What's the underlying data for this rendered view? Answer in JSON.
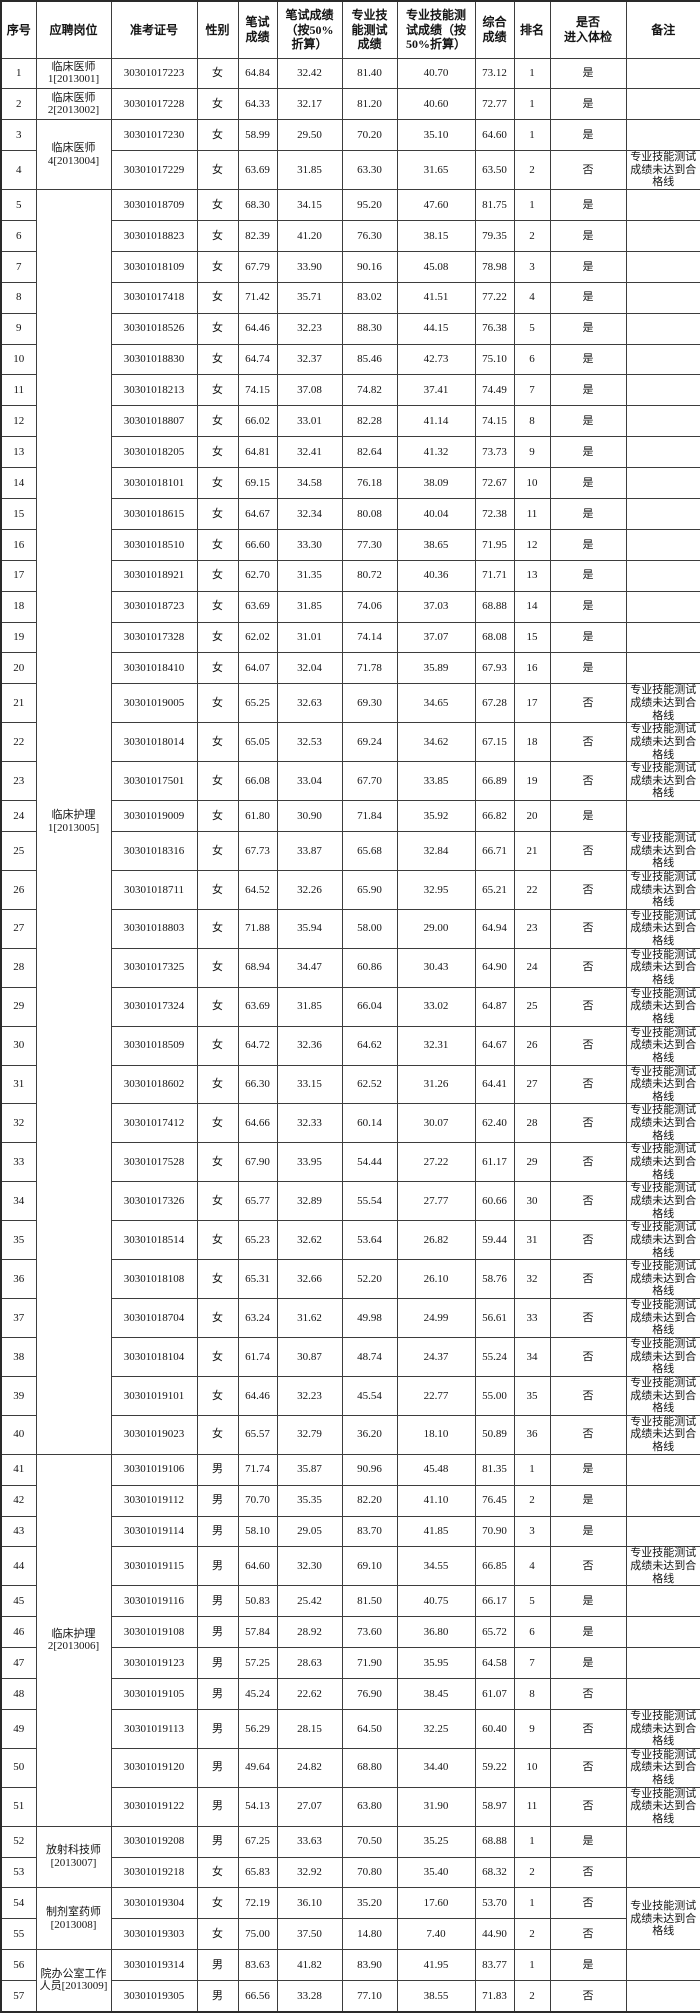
{
  "table": {
    "columns": [
      {
        "key": "no",
        "label": "序号"
      },
      {
        "key": "position",
        "label": "应聘岗位"
      },
      {
        "key": "ticket",
        "label": "准考证号"
      },
      {
        "key": "gender",
        "label": "性别"
      },
      {
        "key": "written",
        "label": "笔试\n成绩"
      },
      {
        "key": "written50",
        "label": "笔试成绩\n（按50%\n折算）"
      },
      {
        "key": "skill",
        "label": "专业技\n能测试\n成绩"
      },
      {
        "key": "skill50",
        "label": "专业技能测\n试成绩（按\n50%折算）"
      },
      {
        "key": "composite",
        "label": "综合\n成绩"
      },
      {
        "key": "rank",
        "label": "排名"
      },
      {
        "key": "physical",
        "label": "是否\n进入体检"
      },
      {
        "key": "remark",
        "label": "备注"
      }
    ],
    "position_groups": [
      {
        "row_start": 1,
        "row_span": 1,
        "label": "临床医师1[2013001]"
      },
      {
        "row_start": 2,
        "row_span": 1,
        "label": "临床医师2[2013002]"
      },
      {
        "row_start": 3,
        "row_span": 2,
        "label": "临床医师4[2013004]"
      },
      {
        "row_start": 5,
        "row_span": 36,
        "label": "临床护理1[2013005]"
      },
      {
        "row_start": 41,
        "row_span": 11,
        "label": "临床护理2[2013006]"
      },
      {
        "row_start": 52,
        "row_span": 2,
        "label": "放射科技师[2013007]"
      },
      {
        "row_start": 54,
        "row_span": 2,
        "label": "制剂室药师[2013008]"
      },
      {
        "row_start": 56,
        "row_span": 2,
        "label": "院办公室工作人员[2013009]"
      }
    ],
    "remark_groups": [
      {
        "row_start": 54,
        "row_span": 2,
        "text": "专业技能测试成绩未达到合格线"
      }
    ],
    "rows": [
      [
        "1",
        "30301017223",
        "女",
        "64.84",
        "32.42",
        "81.40",
        "40.70",
        "73.12",
        "1",
        "是",
        ""
      ],
      [
        "2",
        "30301017228",
        "女",
        "64.33",
        "32.17",
        "81.20",
        "40.60",
        "72.77",
        "1",
        "是",
        ""
      ],
      [
        "3",
        "30301017230",
        "女",
        "58.99",
        "29.50",
        "70.20",
        "35.10",
        "64.60",
        "1",
        "是",
        ""
      ],
      [
        "4",
        "30301017229",
        "女",
        "63.69",
        "31.85",
        "63.30",
        "31.65",
        "63.50",
        "2",
        "否",
        "专业技能测试成绩未达到合格线"
      ],
      [
        "5",
        "30301018709",
        "女",
        "68.30",
        "34.15",
        "95.20",
        "47.60",
        "81.75",
        "1",
        "是",
        ""
      ],
      [
        "6",
        "30301018823",
        "女",
        "82.39",
        "41.20",
        "76.30",
        "38.15",
        "79.35",
        "2",
        "是",
        ""
      ],
      [
        "7",
        "30301018109",
        "女",
        "67.79",
        "33.90",
        "90.16",
        "45.08",
        "78.98",
        "3",
        "是",
        ""
      ],
      [
        "8",
        "30301017418",
        "女",
        "71.42",
        "35.71",
        "83.02",
        "41.51",
        "77.22",
        "4",
        "是",
        ""
      ],
      [
        "9",
        "30301018526",
        "女",
        "64.46",
        "32.23",
        "88.30",
        "44.15",
        "76.38",
        "5",
        "是",
        ""
      ],
      [
        "10",
        "30301018830",
        "女",
        "64.74",
        "32.37",
        "85.46",
        "42.73",
        "75.10",
        "6",
        "是",
        ""
      ],
      [
        "11",
        "30301018213",
        "女",
        "74.15",
        "37.08",
        "74.82",
        "37.41",
        "74.49",
        "7",
        "是",
        ""
      ],
      [
        "12",
        "30301018807",
        "女",
        "66.02",
        "33.01",
        "82.28",
        "41.14",
        "74.15",
        "8",
        "是",
        ""
      ],
      [
        "13",
        "30301018205",
        "女",
        "64.81",
        "32.41",
        "82.64",
        "41.32",
        "73.73",
        "9",
        "是",
        ""
      ],
      [
        "14",
        "30301018101",
        "女",
        "69.15",
        "34.58",
        "76.18",
        "38.09",
        "72.67",
        "10",
        "是",
        ""
      ],
      [
        "15",
        "30301018615",
        "女",
        "64.67",
        "32.34",
        "80.08",
        "40.04",
        "72.38",
        "11",
        "是",
        ""
      ],
      [
        "16",
        "30301018510",
        "女",
        "66.60",
        "33.30",
        "77.30",
        "38.65",
        "71.95",
        "12",
        "是",
        ""
      ],
      [
        "17",
        "30301018921",
        "女",
        "62.70",
        "31.35",
        "80.72",
        "40.36",
        "71.71",
        "13",
        "是",
        ""
      ],
      [
        "18",
        "30301018723",
        "女",
        "63.69",
        "31.85",
        "74.06",
        "37.03",
        "68.88",
        "14",
        "是",
        ""
      ],
      [
        "19",
        "30301017328",
        "女",
        "62.02",
        "31.01",
        "74.14",
        "37.07",
        "68.08",
        "15",
        "是",
        ""
      ],
      [
        "20",
        "30301018410",
        "女",
        "64.07",
        "32.04",
        "71.78",
        "35.89",
        "67.93",
        "16",
        "是",
        ""
      ],
      [
        "21",
        "30301019005",
        "女",
        "65.25",
        "32.63",
        "69.30",
        "34.65",
        "67.28",
        "17",
        "否",
        "专业技能测试成绩未达到合格线"
      ],
      [
        "22",
        "30301018014",
        "女",
        "65.05",
        "32.53",
        "69.24",
        "34.62",
        "67.15",
        "18",
        "否",
        "专业技能测试成绩未达到合格线"
      ],
      [
        "23",
        "30301017501",
        "女",
        "66.08",
        "33.04",
        "67.70",
        "33.85",
        "66.89",
        "19",
        "否",
        "专业技能测试成绩未达到合格线"
      ],
      [
        "24",
        "30301019009",
        "女",
        "61.80",
        "30.90",
        "71.84",
        "35.92",
        "66.82",
        "20",
        "是",
        ""
      ],
      [
        "25",
        "30301018316",
        "女",
        "67.73",
        "33.87",
        "65.68",
        "32.84",
        "66.71",
        "21",
        "否",
        "专业技能测试成绩未达到合格线"
      ],
      [
        "26",
        "30301018711",
        "女",
        "64.52",
        "32.26",
        "65.90",
        "32.95",
        "65.21",
        "22",
        "否",
        "专业技能测试成绩未达到合格线"
      ],
      [
        "27",
        "30301018803",
        "女",
        "71.88",
        "35.94",
        "58.00",
        "29.00",
        "64.94",
        "23",
        "否",
        "专业技能测试成绩未达到合格线"
      ],
      [
        "28",
        "30301017325",
        "女",
        "68.94",
        "34.47",
        "60.86",
        "30.43",
        "64.90",
        "24",
        "否",
        "专业技能测试成绩未达到合格线"
      ],
      [
        "29",
        "30301017324",
        "女",
        "63.69",
        "31.85",
        "66.04",
        "33.02",
        "64.87",
        "25",
        "否",
        "专业技能测试成绩未达到合格线"
      ],
      [
        "30",
        "30301018509",
        "女",
        "64.72",
        "32.36",
        "64.62",
        "32.31",
        "64.67",
        "26",
        "否",
        "专业技能测试成绩未达到合格线"
      ],
      [
        "31",
        "30301018602",
        "女",
        "66.30",
        "33.15",
        "62.52",
        "31.26",
        "64.41",
        "27",
        "否",
        "专业技能测试成绩未达到合格线"
      ],
      [
        "32",
        "30301017412",
        "女",
        "64.66",
        "32.33",
        "60.14",
        "30.07",
        "62.40",
        "28",
        "否",
        "专业技能测试成绩未达到合格线"
      ],
      [
        "33",
        "30301017528",
        "女",
        "67.90",
        "33.95",
        "54.44",
        "27.22",
        "61.17",
        "29",
        "否",
        "专业技能测试成绩未达到合格线"
      ],
      [
        "34",
        "30301017326",
        "女",
        "65.77",
        "32.89",
        "55.54",
        "27.77",
        "60.66",
        "30",
        "否",
        "专业技能测试成绩未达到合格线"
      ],
      [
        "35",
        "30301018514",
        "女",
        "65.23",
        "32.62",
        "53.64",
        "26.82",
        "59.44",
        "31",
        "否",
        "专业技能测试成绩未达到合格线"
      ],
      [
        "36",
        "30301018108",
        "女",
        "65.31",
        "32.66",
        "52.20",
        "26.10",
        "58.76",
        "32",
        "否",
        "专业技能测试成绩未达到合格线"
      ],
      [
        "37",
        "30301018704",
        "女",
        "63.24",
        "31.62",
        "49.98",
        "24.99",
        "56.61",
        "33",
        "否",
        "专业技能测试成绩未达到合格线"
      ],
      [
        "38",
        "30301018104",
        "女",
        "61.74",
        "30.87",
        "48.74",
        "24.37",
        "55.24",
        "34",
        "否",
        "专业技能测试成绩未达到合格线"
      ],
      [
        "39",
        "30301019101",
        "女",
        "64.46",
        "32.23",
        "45.54",
        "22.77",
        "55.00",
        "35",
        "否",
        "专业技能测试成绩未达到合格线"
      ],
      [
        "40",
        "30301019023",
        "女",
        "65.57",
        "32.79",
        "36.20",
        "18.10",
        "50.89",
        "36",
        "否",
        "专业技能测试成绩未达到合格线"
      ],
      [
        "41",
        "30301019106",
        "男",
        "71.74",
        "35.87",
        "90.96",
        "45.48",
        "81.35",
        "1",
        "是",
        ""
      ],
      [
        "42",
        "30301019112",
        "男",
        "70.70",
        "35.35",
        "82.20",
        "41.10",
        "76.45",
        "2",
        "是",
        ""
      ],
      [
        "43",
        "30301019114",
        "男",
        "58.10",
        "29.05",
        "83.70",
        "41.85",
        "70.90",
        "3",
        "是",
        ""
      ],
      [
        "44",
        "30301019115",
        "男",
        "64.60",
        "32.30",
        "69.10",
        "34.55",
        "66.85",
        "4",
        "否",
        "专业技能测试成绩未达到合格线"
      ],
      [
        "45",
        "30301019116",
        "男",
        "50.83",
        "25.42",
        "81.50",
        "40.75",
        "66.17",
        "5",
        "是",
        ""
      ],
      [
        "46",
        "30301019108",
        "男",
        "57.84",
        "28.92",
        "73.60",
        "36.80",
        "65.72",
        "6",
        "是",
        ""
      ],
      [
        "47",
        "30301019123",
        "男",
        "57.25",
        "28.63",
        "71.90",
        "35.95",
        "64.58",
        "7",
        "是",
        ""
      ],
      [
        "48",
        "30301019105",
        "男",
        "45.24",
        "22.62",
        "76.90",
        "38.45",
        "61.07",
        "8",
        "否",
        ""
      ],
      [
        "49",
        "30301019113",
        "男",
        "56.29",
        "28.15",
        "64.50",
        "32.25",
        "60.40",
        "9",
        "否",
        "专业技能测试成绩未达到合格线"
      ],
      [
        "50",
        "30301019120",
        "男",
        "49.64",
        "24.82",
        "68.80",
        "34.40",
        "59.22",
        "10",
        "否",
        "专业技能测试成绩未达到合格线"
      ],
      [
        "51",
        "30301019122",
        "男",
        "54.13",
        "27.07",
        "63.80",
        "31.90",
        "58.97",
        "11",
        "否",
        "专业技能测试成绩未达到合格线"
      ],
      [
        "52",
        "30301019208",
        "男",
        "67.25",
        "33.63",
        "70.50",
        "35.25",
        "68.88",
        "1",
        "是",
        ""
      ],
      [
        "53",
        "30301019218",
        "女",
        "65.83",
        "32.92",
        "70.80",
        "35.40",
        "68.32",
        "2",
        "否",
        ""
      ],
      [
        "54",
        "30301019304",
        "女",
        "72.19",
        "36.10",
        "35.20",
        "17.60",
        "53.70",
        "1",
        "否",
        ""
      ],
      [
        "55",
        "30301019303",
        "女",
        "75.00",
        "37.50",
        "14.80",
        "7.40",
        "44.90",
        "2",
        "否",
        ""
      ],
      [
        "56",
        "30301019314",
        "男",
        "83.63",
        "41.82",
        "83.90",
        "41.95",
        "83.77",
        "1",
        "是",
        ""
      ],
      [
        "57",
        "30301019305",
        "男",
        "66.56",
        "33.28",
        "77.10",
        "38.55",
        "71.83",
        "2",
        "否",
        ""
      ]
    ]
  }
}
